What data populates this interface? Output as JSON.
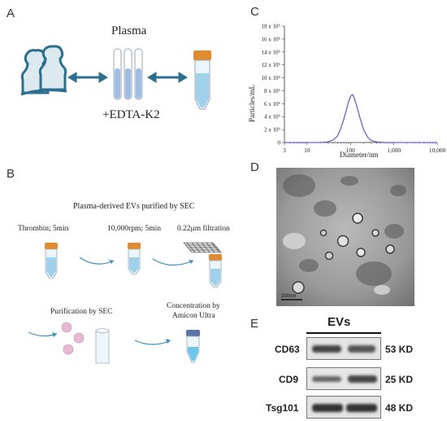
{
  "panels": {
    "a": {
      "letter": "A",
      "title": "Plasma",
      "reagent": "+EDTA-K2"
    },
    "b": {
      "letter": "B",
      "title": "Plasma-derived EVs purified by SEC",
      "step1": "Thrombin; 5min",
      "step2": "10,000rpm; 5min",
      "step3": "0.22μm filtration",
      "step4": "Purification by SEC",
      "step5_line1": "Concentration by",
      "step5_line2": "Amicon Ultra"
    },
    "c": {
      "letter": "C",
      "y_ticks": [
        "18 x 10⁶",
        "16 x 10⁶",
        "14 x 10⁶",
        "12 x 10⁶",
        "10 x 10⁶",
        "8 x 10⁶",
        "6 x 10⁶",
        "4 x 10⁶",
        "2 x 10⁶",
        "0"
      ],
      "x_ticks": [
        "3",
        "10",
        "100",
        "1,000",
        "10,000"
      ]
    },
    "d": {
      "letter": "D",
      "scale_bar": "200nm"
    },
    "e": {
      "letter": "E",
      "header": "EVs",
      "rows": [
        {
          "protein": "CD63",
          "size": "53 KD"
        },
        {
          "protein": "CD9",
          "size": "25 KD"
        },
        {
          "protein": "Tsg101",
          "size": "48 KD"
        }
      ]
    }
  },
  "chart_data": {
    "type": "line",
    "title": "",
    "xlabel": "Diameter/nm",
    "ylabel": "Particles/mL",
    "x_scale": "log",
    "xlim": [
      3,
      10000
    ],
    "ylim": [
      0,
      18000000
    ],
    "grid": false,
    "series": [
      {
        "color": "#6a63c9",
        "x": [
          3,
          20,
          30,
          40,
          50,
          60,
          70,
          80,
          90,
          100,
          110,
          120,
          140,
          160,
          180,
          200,
          250,
          300,
          400,
          600,
          1000,
          10000
        ],
        "y": [
          0,
          0,
          100000,
          400000,
          1000000,
          2200000,
          3600000,
          5000000,
          6300000,
          7100000,
          7400000,
          7000000,
          5600000,
          4100000,
          3000000,
          2000000,
          800000,
          300000,
          100000,
          0,
          0,
          0
        ]
      }
    ]
  }
}
